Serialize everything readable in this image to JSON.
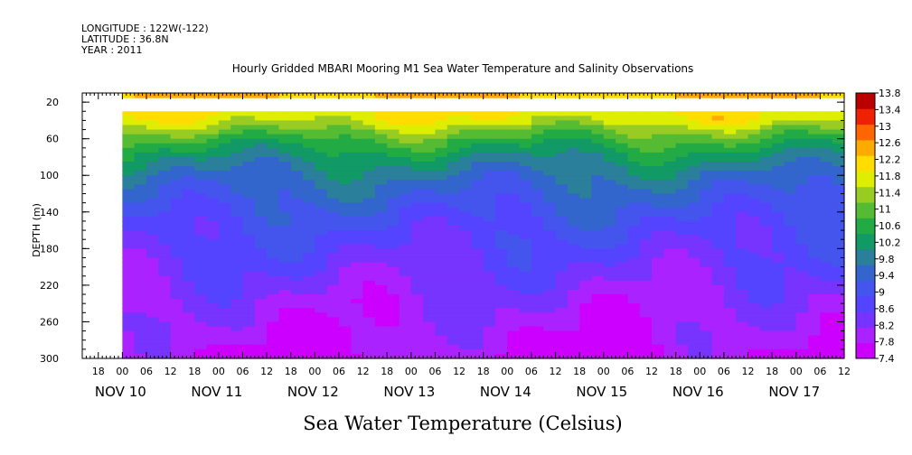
{
  "header": {
    "longitude": "LONGITUDE : 122W(-122)",
    "latitude": "LATITUDE : 36.8N",
    "year": "YEAR : 2011"
  },
  "chart_data": {
    "type": "heatmap",
    "title": "Hourly Gridded MBARI Mooring M1 Sea Water Temperature and Salinity Observations",
    "caption": "Sea Water Temperature (Celsius)",
    "ylabel": "DEPTH (m)",
    "y_axis": {
      "ticks": [
        20,
        60,
        100,
        140,
        180,
        220,
        260,
        300
      ],
      "range": [
        10,
        300
      ],
      "direction": "down"
    },
    "x_axis": {
      "hour_ticks": [
        "18",
        "00",
        "06",
        "12",
        "18",
        "00",
        "06",
        "12",
        "18",
        "00",
        "06",
        "12",
        "18",
        "00",
        "06",
        "12",
        "18",
        "00",
        "06",
        "12",
        "18",
        "00",
        "06",
        "12",
        "18",
        "00",
        "06",
        "12",
        "18",
        "00",
        "06",
        "12"
      ],
      "day_labels": [
        "NOV 10",
        "NOV 11",
        "NOV 12",
        "NOV 13",
        "NOV 14",
        "NOV 15",
        "NOV 16",
        "NOV 17"
      ],
      "range_hours": [
        -10,
        180
      ],
      "data_start_hour": 0
    },
    "colorbar": {
      "levels": [
        7.4,
        7.8,
        8.2,
        8.6,
        9,
        9.4,
        9.8,
        10.2,
        10.6,
        11,
        11.4,
        11.8,
        12.2,
        12.6,
        13,
        13.4,
        13.8
      ],
      "colors": [
        "#cc00ff",
        "#aa22ff",
        "#7733ff",
        "#5544ff",
        "#4455ee",
        "#3366cc",
        "#2a7f9a",
        "#119966",
        "#22aa44",
        "#55bb33",
        "#99cc22",
        "#ddee00",
        "#ffdd00",
        "#ffaa00",
        "#ff6600",
        "#ee2200",
        "#bb0000"
      ]
    },
    "depth_profile": [
      {
        "depth": 10,
        "temp": 12.6
      },
      {
        "depth": 20,
        "temp": 12.5
      },
      {
        "depth": 40,
        "temp": 12.0
      },
      {
        "depth": 50,
        "temp": 11.5
      },
      {
        "depth": 60,
        "temp": 11.0
      },
      {
        "depth": 80,
        "temp": 10.3
      },
      {
        "depth": 100,
        "temp": 9.8
      },
      {
        "depth": 130,
        "temp": 9.3
      },
      {
        "depth": 160,
        "temp": 8.9
      },
      {
        "depth": 200,
        "temp": 8.5
      },
      {
        "depth": 240,
        "temp": 8.1
      },
      {
        "depth": 270,
        "temp": 7.9
      },
      {
        "depth": 300,
        "temp": 7.7
      }
    ],
    "missing_depth_band": [
      19,
      30
    ]
  }
}
